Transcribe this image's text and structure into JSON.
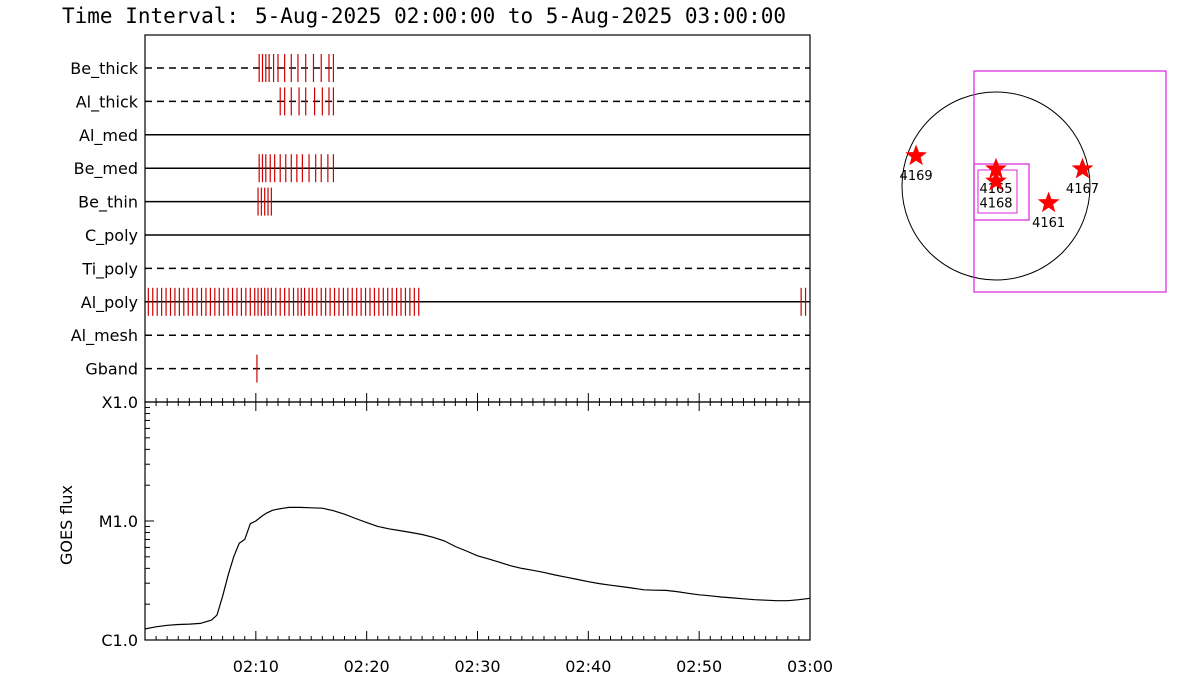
{
  "header": {
    "prefix": "Time Interval:",
    "interval": "5-Aug-2025 02:00:00 to  5-Aug-2025 03:00:00"
  },
  "colors": {
    "obs": "#cc0000",
    "star": "#ff0000",
    "box": "#dd22dd",
    "line": "#000000"
  },
  "chart_data": [
    {
      "type": "event-timeline",
      "x_range_minutes": [
        0,
        60
      ],
      "channels": [
        {
          "name": "Be_thick",
          "style": "dashed",
          "obs_minutes": [
            10.3,
            10.6,
            10.9,
            11.2,
            11.6,
            12.0,
            12.6,
            13.2,
            13.8,
            14.5,
            15.2,
            15.9,
            16.6,
            17.0
          ]
        },
        {
          "name": "Al_thick",
          "style": "dashed",
          "obs_minutes": [
            12.2,
            12.6,
            13.2,
            13.9,
            14.5,
            15.3,
            16.0,
            16.6,
            17.0
          ]
        },
        {
          "name": "Al_med",
          "style": "solid",
          "obs_minutes": []
        },
        {
          "name": "Be_med",
          "style": "solid",
          "obs_minutes": [
            10.3,
            10.6,
            10.9,
            11.3,
            11.7,
            12.2,
            12.7,
            13.2,
            13.7,
            14.2,
            14.8,
            15.4,
            15.9,
            16.5,
            17.0
          ]
        },
        {
          "name": "Be_thin",
          "style": "solid",
          "obs_minutes": [
            10.2,
            10.5,
            10.8,
            11.1,
            11.4
          ]
        },
        {
          "name": "C_poly",
          "style": "solid",
          "obs_minutes": []
        },
        {
          "name": "Ti_poly",
          "style": "dashed",
          "obs_minutes": []
        },
        {
          "name": "Al_poly",
          "style": "solid",
          "obs_minutes": [
            0.3,
            0.7,
            1.1,
            1.5,
            1.9,
            2.3,
            2.7,
            3.1,
            3.5,
            3.9,
            4.3,
            4.7,
            5.1,
            5.5,
            5.9,
            6.3,
            6.7,
            7.1,
            7.5,
            7.9,
            8.3,
            8.7,
            9.1,
            9.5,
            9.9,
            10.2,
            10.5,
            10.8,
            11.1,
            11.4,
            11.8,
            12.2,
            12.6,
            13.0,
            13.4,
            13.8,
            14.1,
            14.4,
            14.8,
            15.1,
            15.5,
            15.9,
            16.3,
            16.7,
            17.1,
            17.5,
            17.9,
            18.3,
            18.7,
            19.1,
            19.5,
            19.9,
            20.3,
            20.7,
            21.1,
            21.5,
            21.9,
            22.3,
            22.7,
            23.1,
            23.5,
            23.9,
            24.3,
            24.7,
            59.2,
            59.6
          ]
        },
        {
          "name": "Al_mesh",
          "style": "dashed",
          "obs_minutes": []
        },
        {
          "name": "Gband",
          "style": "dashed",
          "obs_minutes": [
            10.1
          ]
        }
      ]
    },
    {
      "type": "line",
      "ylabel": "GOES flux",
      "scale": "log",
      "ylim": [
        1e-06,
        0.0001
      ],
      "y_tick_labels": [
        "C1.0",
        "M1.0",
        "X1.0"
      ],
      "y_tick_values": [
        1e-06,
        1e-05,
        0.0001
      ],
      "x_tick_labels": [
        "02:10",
        "02:20",
        "02:30",
        "02:40",
        "02:50",
        "03:00"
      ],
      "x_tick_minutes": [
        10,
        20,
        30,
        40,
        50,
        60
      ],
      "series": [
        {
          "x_minutes": [
            0,
            1,
            2,
            3,
            4,
            5,
            6,
            6.5,
            7,
            7.5,
            8,
            8.5,
            9,
            9.5,
            10,
            10.5,
            11,
            11.5,
            12,
            12.5,
            13,
            14,
            15,
            16,
            17,
            18,
            19,
            20,
            21,
            22,
            23,
            24,
            25,
            26,
            27,
            28,
            29,
            30,
            31,
            32,
            33,
            34,
            35,
            36,
            37,
            38,
            39,
            40,
            41,
            42,
            43,
            44,
            45,
            46,
            47,
            48,
            49,
            50,
            51,
            52,
            53,
            54,
            55,
            56,
            57,
            58,
            59,
            60
          ],
          "y": [
            1.24e-06,
            1.29e-06,
            1.33e-06,
            1.35e-06,
            1.36e-06,
            1.38e-06,
            1.47e-06,
            1.62e-06,
            2.33e-06,
            3.5e-06,
            5e-06,
            6.5e-06,
            7e-06,
            9.5e-06,
            1e-05,
            1.09e-05,
            1.17e-05,
            1.23e-05,
            1.26e-05,
            1.28e-05,
            1.3e-05,
            1.3e-05,
            1.29e-05,
            1.28e-05,
            1.22e-05,
            1.14e-05,
            1.05e-05,
            9.7e-06,
            9e-06,
            8.6e-06,
            8.3e-06,
            8e-06,
            7.7e-06,
            7.3e-06,
            6.8e-06,
            6.1e-06,
            5.6e-06,
            5.1e-06,
            4.8e-06,
            4.5e-06,
            4.2e-06,
            4e-06,
            3.85e-06,
            3.7e-06,
            3.52e-06,
            3.37e-06,
            3.23e-06,
            3.09e-06,
            2.98e-06,
            2.89e-06,
            2.81e-06,
            2.73e-06,
            2.64e-06,
            2.62e-06,
            2.61e-06,
            2.55e-06,
            2.47e-06,
            2.4e-06,
            2.35e-06,
            2.3e-06,
            2.26e-06,
            2.22e-06,
            2.18e-06,
            2.16e-06,
            2.14e-06,
            2.14e-06,
            2.18e-06,
            2.24e-06
          ]
        }
      ]
    },
    {
      "type": "scatter",
      "subject": "solar disk locator",
      "points": [
        {
          "label": "4169",
          "x": -0.85,
          "y": 0.32
        },
        {
          "label": "4165",
          "x": 0.0,
          "y": 0.18
        },
        {
          "label": "4168",
          "x": 0.0,
          "y": 0.05
        },
        {
          "label": "4167",
          "x": 0.92,
          "y": 0.18
        },
        {
          "label": "4161",
          "x": 0.56,
          "y": -0.18
        }
      ]
    }
  ]
}
